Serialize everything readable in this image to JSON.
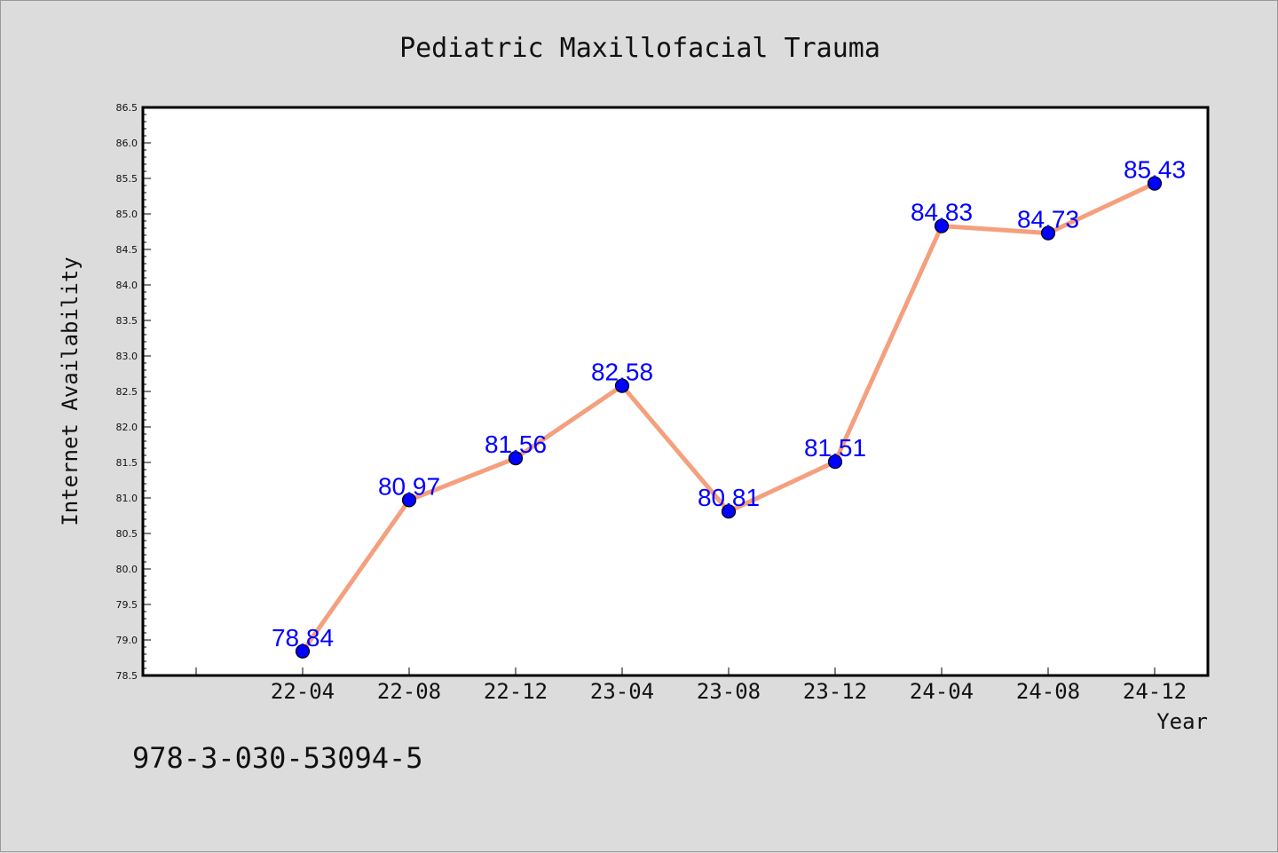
{
  "footer": {
    "id_text": "978-3-030-53094-5"
  },
  "chart_data": {
    "type": "line",
    "title": "Pediatric Maxillofacial Trauma",
    "xlabel": "Year",
    "ylabel": "Internet Availability",
    "categories": [
      "22-04",
      "22-08",
      "22-12",
      "23-04",
      "23-08",
      "23-12",
      "24-04",
      "24-08",
      "24-12"
    ],
    "values": [
      78.84,
      80.97,
      81.56,
      82.58,
      80.81,
      81.51,
      84.83,
      84.73,
      85.43
    ],
    "value_labels": [
      "78.84",
      "80.97",
      "81.56",
      "82.58",
      "80.81",
      "81.51",
      "84.83",
      "84.73",
      "85.43"
    ],
    "ylim": [
      78.5,
      86.5
    ],
    "yticks": [
      "78.5",
      "79.0",
      "79.5",
      "80.0",
      "80.5",
      "81.0",
      "81.5",
      "82.0",
      "82.5",
      "83.0",
      "83.5",
      "84.0",
      "84.5",
      "85.0",
      "85.5",
      "86.0",
      "86.5"
    ],
    "grid": false,
    "legend": "none",
    "colors": {
      "line": "#f4a07e",
      "marker": "#0000ff",
      "label": "#0000ff",
      "background": "#dcdcdc",
      "plot_background": "#ffffff"
    }
  }
}
